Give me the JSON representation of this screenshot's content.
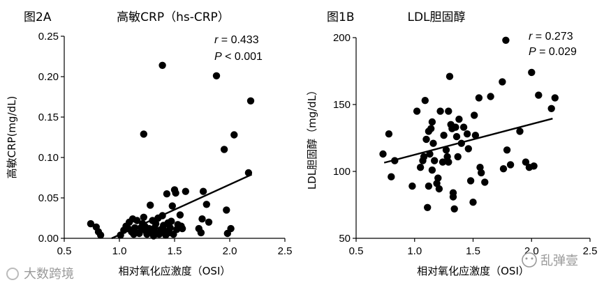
{
  "watermarks": {
    "left": "大数跨境",
    "right": "乱弹壹"
  },
  "chart_data": [
    {
      "type": "scatter",
      "panel_label": "图2A",
      "title": "高敏CRP（hs-CRP）",
      "xlabel": "相对氧化应激度（OSI）",
      "ylabel": "高敏CRP(mg/dL)",
      "xlim": [
        0.5,
        2.5
      ],
      "ylim": [
        0,
        0.25
      ],
      "xticks": [
        "0.5",
        "1.0",
        "1.5",
        "2.0",
        "2.5"
      ],
      "yticks": [
        "0.00",
        "0.05",
        "0.10",
        "0.15",
        "0.20",
        "0.25"
      ],
      "stat_r_label": "r",
      "stat_r_value": " = 0.433",
      "stat_p_label": "P",
      "stat_p_value": " < 0.001",
      "trendline": [
        [
          0.93,
          0.0
        ],
        [
          2.2,
          0.079
        ]
      ],
      "x": [
        0.74,
        0.79,
        0.81,
        0.83,
        1.01,
        1.04,
        1.06,
        1.08,
        1.09,
        1.11,
        1.12,
        1.13,
        1.14,
        1.15,
        1.16,
        1.18,
        1.2,
        1.21,
        1.22,
        1.23,
        1.24,
        1.25,
        1.27,
        1.28,
        1.29,
        1.3,
        1.31,
        1.32,
        1.33,
        1.34,
        1.35,
        1.36,
        1.38,
        1.39,
        1.4,
        1.41,
        1.42,
        1.43,
        1.44,
        1.45,
        1.46,
        1.47,
        1.48,
        1.49,
        1.5,
        1.51,
        1.52,
        1.53,
        1.55,
        1.56,
        1.57,
        1.6,
        1.72,
        1.74,
        1.75,
        1.76,
        1.79,
        1.81,
        1.88,
        1.95,
        1.97,
        1.98,
        2.01,
        2.04,
        2.17,
        2.19,
        1.22,
        1.39
      ],
      "y": [
        0.018,
        0.014,
        0.008,
        0.004,
        0.004,
        0.01,
        0.015,
        0.012,
        0.02,
        0.008,
        0.024,
        0.005,
        0.013,
        0.007,
        0.022,
        0.006,
        0.012,
        0.018,
        0.026,
        0.015,
        0.009,
        0.005,
        0.012,
        0.041,
        0.008,
        0.022,
        0.003,
        0.013,
        0.018,
        0.006,
        0.025,
        0.005,
        0.011,
        0.028,
        0.016,
        0.009,
        0.004,
        0.055,
        0.019,
        0.007,
        0.013,
        0.021,
        0.04,
        0.005,
        0.06,
        0.056,
        0.011,
        0.017,
        0.029,
        0.015,
        0.012,
        0.058,
        0.012,
        0.007,
        0.024,
        0.058,
        0.042,
        0.02,
        0.201,
        0.11,
        0.035,
        0.006,
        0.012,
        0.128,
        0.081,
        0.17,
        0.129,
        0.214
      ]
    },
    {
      "type": "scatter",
      "panel_label": "图1B",
      "title": "LDL胆固醇",
      "xlabel": "相对氧化应激度（OSI）",
      "ylabel": "LDL胆固醇（mg/dL）",
      "xlim": [
        0.5,
        2.5
      ],
      "ylim": [
        50,
        200
      ],
      "xticks": [
        "0.5",
        "1.0",
        "1.5",
        "2.0",
        "2.5"
      ],
      "yticks": [
        "50",
        "100",
        "150",
        "200"
      ],
      "stat_r_label": "r",
      "stat_r_value": " = 0.273",
      "stat_p_label": "P",
      "stat_p_value": " = 0.029",
      "trendline": [
        [
          0.74,
          106.5
        ],
        [
          2.18,
          139.5
        ]
      ],
      "x": [
        0.73,
        0.78,
        0.8,
        0.83,
        0.98,
        1.02,
        1.05,
        1.07,
        1.08,
        1.09,
        1.1,
        1.11,
        1.12,
        1.13,
        1.14,
        1.15,
        1.16,
        1.17,
        1.19,
        1.2,
        1.21,
        1.22,
        1.24,
        1.25,
        1.27,
        1.28,
        1.29,
        1.3,
        1.31,
        1.32,
        1.33,
        1.34,
        1.35,
        1.36,
        1.37,
        1.38,
        1.4,
        1.42,
        1.45,
        1.46,
        1.48,
        1.5,
        1.51,
        1.52,
        1.55,
        1.56,
        1.57,
        1.6,
        1.65,
        1.75,
        1.76,
        1.78,
        1.79,
        1.82,
        1.9,
        1.95,
        1.98,
        2.0,
        2.02,
        2.06,
        2.17,
        2.2,
        1.12,
        1.29,
        1.33,
        1.15
      ],
      "y": [
        113,
        128,
        96,
        108,
        89,
        145,
        103,
        108,
        111,
        153,
        124,
        73,
        130,
        113,
        132,
        101,
        121,
        108,
        91,
        95,
        87,
        145,
        107,
        127,
        116,
        111,
        107,
        171,
        135,
        132,
        81,
        72,
        133,
        126,
        111,
        139,
        121,
        133,
        128,
        117,
        93,
        77,
        142,
        127,
        155,
        103,
        99,
        92,
        156,
        167,
        102,
        198,
        116,
        105,
        130,
        107,
        103,
        174,
        104,
        157,
        147,
        155,
        89,
        145,
        84,
        137
      ]
    }
  ]
}
